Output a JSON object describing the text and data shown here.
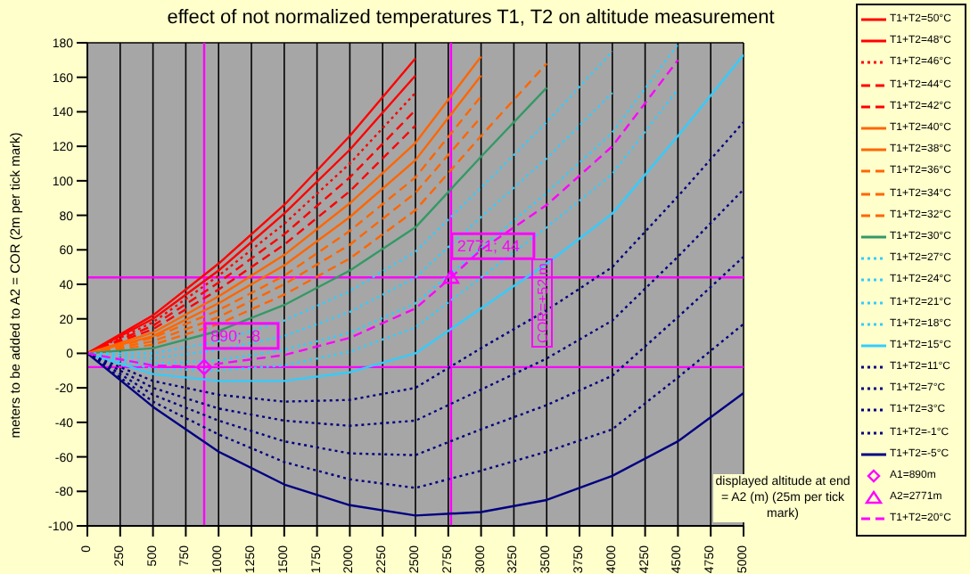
{
  "chart_data": {
    "type": "line",
    "title": "effect of not normalized temperatures T1, T2  on altitude measurement",
    "xlabel": "displayed altitude at end = A2 (m)  (25m per tick mark)",
    "ylabel": "meters to be added to A2 = COR  (2m per tick mark)",
    "x": [
      0,
      500,
      1000,
      1500,
      2000,
      2500,
      3000,
      3500,
      4000,
      4500,
      5000
    ],
    "xlim": [
      0,
      5000
    ],
    "xticks": [
      0,
      250,
      500,
      750,
      1000,
      1250,
      1500,
      1750,
      2000,
      2250,
      2500,
      2750,
      3000,
      3250,
      3500,
      3750,
      4000,
      4250,
      4500,
      4750,
      5000
    ],
    "ylim": [
      -100,
      180
    ],
    "yticks": [
      -100,
      -80,
      -60,
      -40,
      -20,
      0,
      20,
      40,
      60,
      80,
      100,
      120,
      140,
      160,
      180
    ],
    "grid": true,
    "legend": "right",
    "marker": "none",
    "series": [
      {
        "name": "T1+T2=50°C",
        "color": "#ff0000",
        "line_style": "solid",
        "values": [
          0,
          22,
          52,
          86,
          126,
          171,
          null,
          null,
          null,
          null,
          null
        ]
      },
      {
        "name": "T1+T2=48°C",
        "color": "#ff0000",
        "line_style": "solid",
        "values": [
          0,
          20,
          48,
          81,
          118,
          161,
          null,
          null,
          null,
          null,
          null
        ]
      },
      {
        "name": "T1+T2=46°C",
        "color": "#ff0000",
        "line_style": "dotted",
        "values": [
          0,
          18,
          45,
          75,
          110,
          151,
          null,
          null,
          null,
          null,
          null
        ]
      },
      {
        "name": "T1+T2=44°C",
        "color": "#ff0000",
        "line_style": "dashed",
        "values": [
          0,
          16,
          41,
          69,
          102,
          141,
          null,
          null,
          null,
          null,
          null
        ]
      },
      {
        "name": "T1+T2=42°C",
        "color": "#ff0000",
        "line_style": "dashed",
        "values": [
          0,
          14,
          37,
          63,
          94,
          132,
          null,
          null,
          null,
          null,
          null
        ]
      },
      {
        "name": "T1+T2=40°C",
        "color": "#ff6600",
        "line_style": "solid",
        "values": [
          0,
          12,
          33,
          57,
          87,
          122,
          172,
          null,
          null,
          null,
          null
        ]
      },
      {
        "name": "T1+T2=38°C",
        "color": "#ff6600",
        "line_style": "solid",
        "values": [
          0,
          10,
          29,
          51,
          79,
          112,
          161,
          null,
          null,
          null,
          null
        ]
      },
      {
        "name": "T1+T2=36°C",
        "color": "#ff6600",
        "line_style": "dashed",
        "values": [
          0,
          9,
          25,
          45,
          71,
          102,
          149,
          null,
          null,
          null,
          null
        ]
      },
      {
        "name": "T1+T2=34°C",
        "color": "#ff6600",
        "line_style": "dashed",
        "values": [
          0,
          7,
          21,
          40,
          63,
          93,
          137,
          null,
          null,
          null,
          null
        ]
      },
      {
        "name": "T1+T2=32°C",
        "color": "#ff6600",
        "line_style": "dashed",
        "values": [
          0,
          5,
          17,
          34,
          55,
          83,
          126,
          168,
          null,
          null,
          null
        ]
      },
      {
        "name": "T1+T2=30°C",
        "color": "#339966",
        "line_style": "solid",
        "values": [
          0,
          3,
          13,
          28,
          48,
          73,
          114,
          154,
          null,
          null,
          null
        ]
      },
      {
        "name": "T1+T2=27°C",
        "color": "#33ccff",
        "line_style": "dotted",
        "values": [
          0,
          0,
          7,
          19,
          36,
          59,
          96,
          134,
          175,
          null,
          null
        ]
      },
      {
        "name": "T1+T2=24°C",
        "color": "#33ccff",
        "line_style": "dotted",
        "values": [
          0,
          -3,
          2,
          10,
          24,
          44,
          79,
          113,
          151,
          null,
          null
        ]
      },
      {
        "name": "T1+T2=21°C",
        "color": "#33ccff",
        "line_style": "dotted",
        "values": [
          0,
          -6,
          -4,
          2,
          12,
          29,
          61,
          93,
          128,
          179,
          null
        ]
      },
      {
        "name": "T1+T2=18°C",
        "color": "#33ccff",
        "line_style": "dotted",
        "values": [
          0,
          -9,
          -10,
          -7,
          1,
          15,
          44,
          73,
          104,
          153,
          null
        ]
      },
      {
        "name": "T1+T2=15°C",
        "color": "#33ccff",
        "line_style": "solid",
        "values": [
          0,
          -12,
          -16,
          -16,
          -11,
          0,
          26,
          52,
          81,
          126,
          173
        ]
      },
      {
        "name": "T1+T2=11°C",
        "color": "#000080",
        "line_style": "dotted",
        "values": [
          0,
          -16,
          -24,
          -28,
          -27,
          -20,
          3,
          25,
          50,
          91,
          134
        ]
      },
      {
        "name": "T1+T2=7°C",
        "color": "#000080",
        "line_style": "dotted",
        "values": [
          0,
          -20,
          -32,
          -39,
          -42,
          -39,
          -21,
          -3,
          19,
          56,
          95
        ]
      },
      {
        "name": "T1+T2=3°C",
        "color": "#000080",
        "line_style": "dotted",
        "values": [
          0,
          -24,
          -39,
          -51,
          -58,
          -59,
          -44,
          -30,
          -13,
          21,
          56
        ]
      },
      {
        "name": "T1+T2=-1°C",
        "color": "#000080",
        "line_style": "dotted",
        "values": [
          0,
          -28,
          -47,
          -63,
          -73,
          -78,
          -68,
          -57,
          -44,
          -14,
          17
        ]
      },
      {
        "name": "T1+T2=-5°C",
        "color": "#000080",
        "line_style": "solid",
        "values": [
          0,
          -31,
          -57,
          -76,
          -88,
          -94,
          -92,
          -85,
          -71,
          -51,
          -23
        ]
      },
      {
        "name": "A1=890m",
        "type": "scatter",
        "marker": "diamond",
        "color": "#ff00ff",
        "x": [
          890
        ],
        "values": [
          -8
        ],
        "value_labels": [
          "890; -8"
        ]
      },
      {
        "name": "A2=2771m",
        "type": "scatter",
        "marker": "triangle",
        "color": "#ff00ff",
        "x": [
          2771
        ],
        "values": [
          44
        ],
        "value_labels": [
          "2771; 44"
        ]
      },
      {
        "name": "T1+T2=20°C",
        "color": "#ff00ff",
        "line_style": "dashed",
        "x": [
          0,
          500,
          890,
          1000,
          1500,
          2000,
          2500,
          2771,
          3000,
          3500,
          4000,
          4500
        ],
        "values": [
          0,
          -7,
          -8,
          -6,
          -1,
          9,
          26,
          44,
          60,
          86,
          120,
          170
        ]
      }
    ],
    "ref_lines": [
      {
        "axis": "x",
        "value": 890,
        "color": "#ff00ff"
      },
      {
        "axis": "y",
        "value": -8,
        "color": "#ff00ff"
      },
      {
        "axis": "x",
        "value": 2771,
        "color": "#ff00ff"
      },
      {
        "axis": "y",
        "value": 44,
        "color": "#ff00ff"
      }
    ],
    "annotations": [
      "COR=+52 m"
    ]
  }
}
